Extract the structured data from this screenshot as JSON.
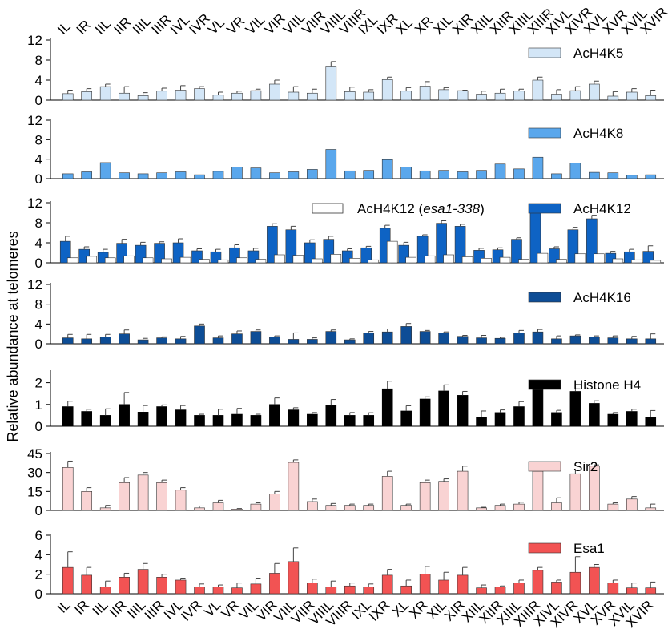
{
  "ylabel": "Relative abundance at telomeres",
  "telomeres": [
    "IL",
    "IR",
    "IIL",
    "IIR",
    "IIIL",
    "IIIR",
    "IVL",
    "IVR",
    "VL",
    "VR",
    "VIL",
    "VIR",
    "VIIL",
    "VIIR",
    "VIIIL",
    "VIIIR",
    "IXL",
    "IXR",
    "XL",
    "XR",
    "XIL",
    "XIR",
    "XIIL",
    "XIIR",
    "XIIIL",
    "XIIIR",
    "XIVL",
    "XIVR",
    "XVL",
    "XVR",
    "XVIL",
    "XVIR"
  ],
  "chart_data": [
    {
      "type": "bar",
      "ylim": [
        0,
        12
      ],
      "yticks": [
        0,
        4,
        8,
        12
      ],
      "series": [
        {
          "name": "AcH4K5",
          "color": "#d3e6f7",
          "values": [
            1.3,
            1.7,
            2.7,
            1.4,
            0.9,
            1.8,
            2.0,
            2.3,
            1.0,
            1.4,
            1.9,
            3.2,
            1.6,
            1.4,
            6.8,
            1.7,
            1.6,
            4.1,
            1.8,
            2.8,
            2.1,
            1.9,
            1.2,
            1.4,
            1.8,
            4.0,
            1.2,
            1.9,
            3.2,
            0.8,
            1.6,
            0.9
          ],
          "errors": [
            0.7,
            0.6,
            0.5,
            1.3,
            0.6,
            0.6,
            0.9,
            0.4,
            0.6,
            0.4,
            0.3,
            0.8,
            1.1,
            0.8,
            0.9,
            0.9,
            0.5,
            0.5,
            0.7,
            0.9,
            0.4,
            0.1,
            0.6,
            0.8,
            0.4,
            0.6,
            0.9,
            0.8,
            0.6,
            0.9,
            0.7,
            1.1
          ]
        }
      ]
    },
    {
      "type": "bar",
      "ylim": [
        0,
        12
      ],
      "yticks": [
        0,
        4,
        8,
        12
      ],
      "series": [
        {
          "name": "AcH4K8",
          "color": "#5aa7ec",
          "values": [
            1.0,
            1.4,
            3.3,
            1.2,
            1.0,
            1.2,
            1.4,
            0.8,
            1.5,
            2.4,
            2.2,
            1.2,
            1.4,
            1.9,
            6.0,
            1.6,
            1.7,
            3.9,
            2.4,
            1.6,
            1.7,
            1.4,
            1.7,
            3.0,
            2.0,
            4.4,
            1.0,
            3.2,
            1.3,
            1.2,
            0.7,
            0.8
          ]
        }
      ]
    },
    {
      "type": "bar",
      "ylim": [
        0,
        12
      ],
      "yticks": [
        0,
        4,
        8,
        12
      ],
      "series": [
        {
          "name": "AcH4K12",
          "color": "#0e63c4",
          "values": [
            4.3,
            2.7,
            2.1,
            3.9,
            3.5,
            3.9,
            4.0,
            2.4,
            2.2,
            3.0,
            2.4,
            7.3,
            6.6,
            4.0,
            4.7,
            2.4,
            3.0,
            6.9,
            3.5,
            5.3,
            7.9,
            7.3,
            2.5,
            2.6,
            4.7,
            11.3,
            2.8,
            6.6,
            8.8,
            1.9,
            2.2,
            2.3
          ],
          "errors": [
            1.0,
            0.5,
            0.6,
            0.8,
            0.6,
            0.3,
            0.8,
            0.4,
            0.5,
            0.6,
            0.5,
            0.5,
            0.7,
            0.6,
            0.6,
            0.4,
            0.3,
            0.6,
            0.6,
            0.3,
            0.5,
            0.4,
            0.4,
            0.4,
            0.3,
            0.2,
            0.4,
            0.5,
            0.7,
            0.4,
            0.5,
            1.1
          ]
        },
        {
          "name": "AcH4K12 (esa1-338)",
          "color": "#ffffff",
          "values": [
            1.0,
            1.3,
            1.0,
            1.4,
            1.0,
            0.8,
            1.1,
            0.7,
            0.6,
            1.0,
            0.7,
            1.6,
            1.5,
            0.8,
            1.7,
            0.9,
            0.6,
            4.3,
            1.1,
            1.4,
            1.6,
            1.2,
            0.9,
            1.1,
            0.7,
            1.9,
            0.7,
            1.8,
            1.8,
            0.8,
            0.6,
            0.5
          ]
        }
      ]
    },
    {
      "type": "bar",
      "ylim": [
        0,
        12
      ],
      "yticks": [
        0,
        4,
        8,
        12
      ],
      "series": [
        {
          "name": "AcH4K16",
          "color": "#0d4d96",
          "values": [
            1.2,
            1.0,
            1.4,
            2.0,
            0.8,
            1.2,
            1.0,
            3.6,
            1.2,
            2.0,
            2.5,
            1.4,
            0.9,
            0.9,
            2.5,
            0.8,
            2.2,
            2.4,
            3.5,
            2.5,
            2.2,
            1.5,
            1.2,
            1.1,
            2.2,
            2.4,
            1.0,
            1.6,
            1.4,
            1.2,
            1.0,
            1.0
          ],
          "errors": [
            0.7,
            0.9,
            0.5,
            0.8,
            0.3,
            0.2,
            0.5,
            0.4,
            0.4,
            0.6,
            0.3,
            0.2,
            1.3,
            0.3,
            0.3,
            0.2,
            0.3,
            0.6,
            0.6,
            0.2,
            0.2,
            0.2,
            0.5,
            0.2,
            0.5,
            0.5,
            0.6,
            0.2,
            0.2,
            0.4,
            0.5,
            1.0
          ]
        }
      ]
    },
    {
      "type": "bar",
      "ylim": [
        0,
        2.5
      ],
      "yticks": [
        0,
        1,
        2
      ],
      "series": [
        {
          "name": "Histone H4",
          "color": "#000000",
          "values": [
            0.9,
            0.68,
            0.5,
            1.0,
            0.65,
            0.9,
            0.75,
            0.5,
            0.5,
            0.55,
            0.5,
            1.0,
            0.75,
            0.55,
            0.95,
            0.5,
            0.5,
            1.72,
            0.7,
            1.25,
            1.62,
            1.42,
            0.42,
            0.63,
            0.9,
            1.92,
            0.63,
            1.6,
            1.05,
            0.55,
            0.68,
            0.42
          ],
          "errors": [
            0.25,
            0.1,
            0.3,
            0.55,
            0.3,
            0.08,
            0.2,
            0.05,
            0.28,
            0.27,
            0.05,
            0.3,
            0.1,
            0.08,
            0.28,
            0.13,
            0.12,
            0.35,
            0.24,
            0.1,
            0.28,
            0.18,
            0.28,
            0.12,
            0.23,
            0.1,
            0.1,
            0.12,
            0.12,
            0.08,
            0.1,
            0.3
          ]
        }
      ]
    },
    {
      "type": "bar",
      "ylim": [
        0,
        45
      ],
      "yticks": [
        0,
        15,
        30,
        45
      ],
      "series": [
        {
          "name": "Sir2",
          "color": "#f9d3d3",
          "values": [
            34,
            15,
            2,
            22,
            28,
            22,
            16,
            2,
            6,
            1,
            5,
            13,
            38,
            7,
            4,
            4,
            4,
            27,
            4,
            22,
            23,
            31,
            2,
            4,
            5,
            31,
            6,
            29,
            35,
            5,
            9,
            2
          ],
          "errors": [
            5,
            3,
            2,
            4,
            2,
            2,
            2,
            1.5,
            2,
            0.5,
            1,
            2,
            2,
            2,
            1.5,
            1,
            1,
            4,
            1,
            2,
            2,
            4,
            0.5,
            1,
            1.5,
            2,
            4,
            3,
            1,
            1,
            2,
            3
          ]
        }
      ]
    },
    {
      "type": "bar",
      "ylim": [
        0,
        6
      ],
      "yticks": [
        0,
        2,
        4,
        6
      ],
      "series": [
        {
          "name": "Esa1",
          "color": "#f25353",
          "values": [
            2.7,
            1.9,
            0.7,
            1.7,
            2.5,
            1.7,
            1.4,
            0.7,
            0.7,
            0.6,
            1.0,
            2.1,
            3.3,
            1.1,
            0.7,
            0.8,
            0.7,
            1.9,
            0.8,
            2.0,
            1.4,
            1.9,
            0.6,
            0.7,
            1.1,
            2.4,
            1.2,
            2.2,
            2.7,
            1.1,
            0.6,
            0.6
          ],
          "errors": [
            1.6,
            0.8,
            0.6,
            0.4,
            0.6,
            0.3,
            0.2,
            0.3,
            0.2,
            0.5,
            0.6,
            1.0,
            1.4,
            0.4,
            0.6,
            0.3,
            0.3,
            0.6,
            0.6,
            0.8,
            0.8,
            0.8,
            0.3,
            0.1,
            0.3,
            0.3,
            0.2,
            1.6,
            0.3,
            0.3,
            0.5,
            0.6
          ]
        }
      ]
    }
  ]
}
